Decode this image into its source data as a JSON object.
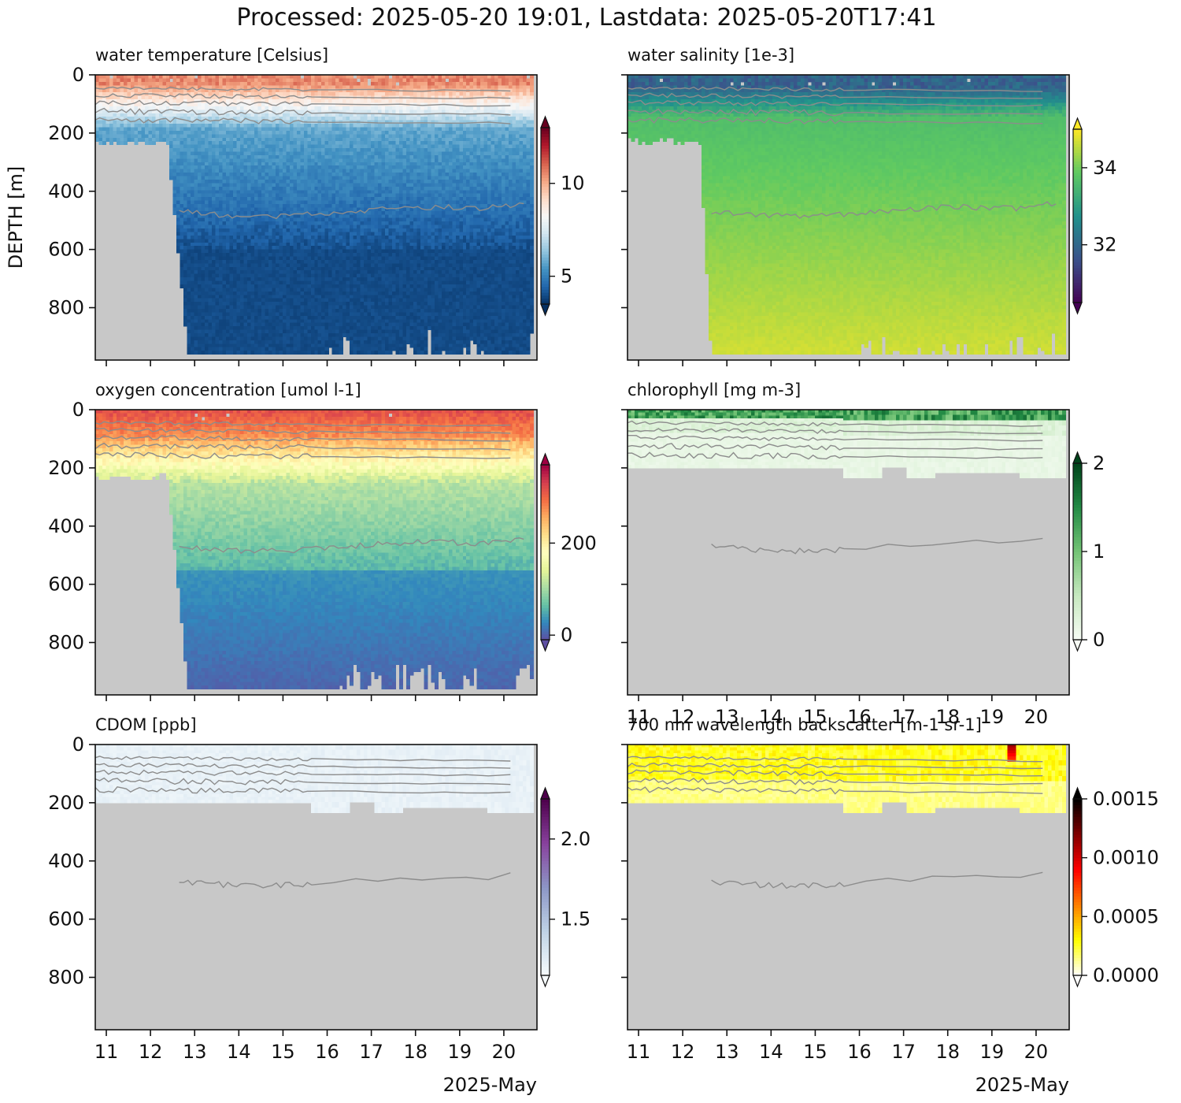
{
  "figure": {
    "suptitle": "Processed: 2025-05-20 19:01, Lastdata: 2025-05-20T17:41"
  },
  "chart_data": [
    {
      "type": "heatmap",
      "title": "water temperature [Celsius]",
      "ylabel": "DEPTH [m]",
      "xlabel": "2025-May",
      "colormap": "RdBu_r",
      "colorbar": {
        "ticks": [
          "5",
          "10"
        ],
        "tick_values": [
          5,
          10
        ],
        "range": [
          3.5,
          13
        ],
        "extend": "both"
      },
      "x": {
        "range": [
          10.75,
          20.75
        ],
        "ticks": [
          11,
          12,
          13,
          14,
          15,
          16,
          17,
          18,
          19,
          20
        ],
        "tick_labels": [
          "11",
          "12",
          "13",
          "14",
          "15",
          "16",
          "17",
          "18",
          "19",
          "20"
        ],
        "show_labels": false
      },
      "y": {
        "range": [
          980,
          0
        ],
        "ticks": [
          0,
          200,
          400,
          600,
          800
        ],
        "tick_labels": [
          "0",
          "200",
          "400",
          "600",
          "800"
        ],
        "show_labels": true
      },
      "surface_layer_depth": 200,
      "deep_start_day": 12.8,
      "max_depth": 960
    },
    {
      "type": "heatmap",
      "title": "water salinity [1e-3]",
      "xlabel": "2025-May",
      "colormap": "viridis",
      "colorbar": {
        "ticks": [
          "32",
          "34"
        ],
        "tick_values": [
          32,
          34
        ],
        "range": [
          30.5,
          35
        ],
        "extend": "both"
      },
      "x": {
        "range": [
          10.75,
          20.75
        ],
        "ticks": [
          11,
          12,
          13,
          14,
          15,
          16,
          17,
          18,
          19,
          20
        ],
        "tick_labels": [
          "11",
          "12",
          "13",
          "14",
          "15",
          "16",
          "17",
          "18",
          "19",
          "20"
        ],
        "show_labels": false
      },
      "y": {
        "range": [
          980,
          0
        ],
        "ticks": [
          0,
          200,
          400,
          600,
          800
        ],
        "tick_labels": [
          "0",
          "200",
          "400",
          "600",
          "800"
        ],
        "show_labels": false
      },
      "surface_layer_depth": 200,
      "deep_start_day": 12.6,
      "max_depth": 960
    },
    {
      "type": "heatmap",
      "title": "oxygen concentration [umol l-1]",
      "xlabel": "2025-May",
      "colormap": "Spectral_r",
      "colorbar": {
        "ticks": [
          "0",
          "200"
        ],
        "tick_values": [
          0,
          200
        ],
        "range": [
          -10,
          370
        ],
        "extend": "both"
      },
      "x": {
        "range": [
          10.75,
          20.75
        ],
        "ticks": [
          11,
          12,
          13,
          14,
          15,
          16,
          17,
          18,
          19,
          20
        ],
        "tick_labels": [
          "11",
          "12",
          "13",
          "14",
          "15",
          "16",
          "17",
          "18",
          "19",
          "20"
        ],
        "show_labels": false
      },
      "y": {
        "range": [
          980,
          0
        ],
        "ticks": [
          0,
          200,
          400,
          600,
          800
        ],
        "tick_labels": [
          "0",
          "200",
          "400",
          "600",
          "800"
        ],
        "show_labels": true
      },
      "surface_layer_depth": 200,
      "deep_start_day": 12.8,
      "max_depth": 960
    },
    {
      "type": "heatmap",
      "title": "chlorophyll [mg m-3]",
      "xlabel": "2025-May",
      "colormap": "Greens",
      "colorbar": {
        "ticks": [
          "0",
          "1",
          "2"
        ],
        "tick_values": [
          0,
          1,
          2
        ],
        "range": [
          0,
          2
        ],
        "extend": "both"
      },
      "x": {
        "range": [
          10.75,
          20.75
        ],
        "ticks": [
          11,
          12,
          13,
          14,
          15,
          16,
          17,
          18,
          19,
          20
        ],
        "tick_labels": [
          "11",
          "12",
          "13",
          "14",
          "15",
          "16",
          "17",
          "18",
          "19",
          "20"
        ],
        "show_labels": true
      },
      "y": {
        "range": [
          980,
          0
        ],
        "ticks": [
          0,
          200,
          400,
          600,
          800
        ],
        "tick_labels": [
          "0",
          "200",
          "400",
          "600",
          "800"
        ],
        "show_labels": false
      },
      "surface_layer_depth": 200,
      "max_depth": 200
    },
    {
      "type": "heatmap",
      "title": "CDOM [ppb]",
      "xlabel": "2025-May",
      "colormap": "BuPu",
      "colorbar": {
        "ticks": [
          "1.5",
          "2.0"
        ],
        "tick_values": [
          1.5,
          2.0
        ],
        "range": [
          1.15,
          2.25
        ],
        "extend": "both"
      },
      "x": {
        "range": [
          10.75,
          20.75
        ],
        "ticks": [
          11,
          12,
          13,
          14,
          15,
          16,
          17,
          18,
          19,
          20
        ],
        "tick_labels": [
          "11",
          "12",
          "13",
          "14",
          "15",
          "16",
          "17",
          "18",
          "19",
          "20"
        ],
        "show_labels": true
      },
      "y": {
        "range": [
          980,
          0
        ],
        "ticks": [
          0,
          200,
          400,
          600,
          800
        ],
        "tick_labels": [
          "0",
          "200",
          "400",
          "600",
          "800"
        ],
        "show_labels": true
      },
      "surface_layer_depth": 200,
      "max_depth": 200
    },
    {
      "type": "heatmap",
      "title": "700 nm wavelength backscatter [m-1 sr-1]",
      "xlabel": "2025-May",
      "colormap": "hot_r",
      "colorbar": {
        "ticks": [
          "0.0000",
          "0.0005",
          "0.0010",
          "0.0015"
        ],
        "tick_values": [
          0,
          0.0005,
          0.001,
          0.0015
        ],
        "range": [
          0,
          0.0015
        ],
        "extend": "both"
      },
      "x": {
        "range": [
          10.75,
          20.75
        ],
        "ticks": [
          11,
          12,
          13,
          14,
          15,
          16,
          17,
          18,
          19,
          20
        ],
        "tick_labels": [
          "11",
          "12",
          "13",
          "14",
          "15",
          "16",
          "17",
          "18",
          "19",
          "20"
        ],
        "show_labels": true
      },
      "y": {
        "range": [
          980,
          0
        ],
        "ticks": [
          0,
          200,
          400,
          600,
          800
        ],
        "tick_labels": [
          "0",
          "200",
          "400",
          "600",
          "800"
        ],
        "show_labels": false
      },
      "surface_layer_depth": 200,
      "max_depth": 200
    }
  ],
  "colors": {
    "no_data": "#c8c8c8",
    "contour": "#8c8c8c",
    "axis": "#111111"
  }
}
